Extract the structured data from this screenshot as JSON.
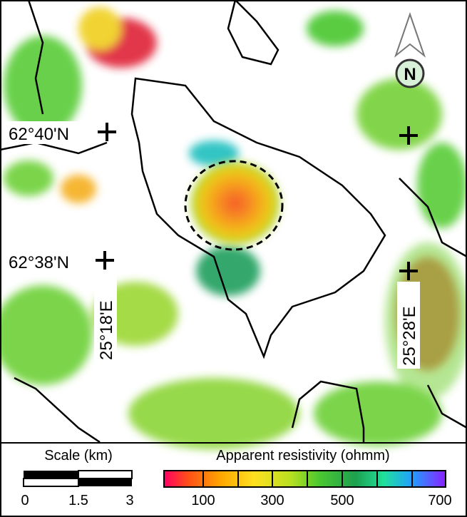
{
  "map": {
    "labels": {
      "lat_north": "62°40'N",
      "lat_south": "62°38'N",
      "lon_west": "25°18'E",
      "lon_east": "25°28'E",
      "north": "N"
    },
    "scale": {
      "title": "Scale (km)",
      "ticks": [
        "0",
        "1.5",
        "3"
      ]
    },
    "colorbar": {
      "title": "Apparent resistivity (ohmm)",
      "ticks": [
        "100",
        "300",
        "500",
        "700"
      ]
    }
  }
}
